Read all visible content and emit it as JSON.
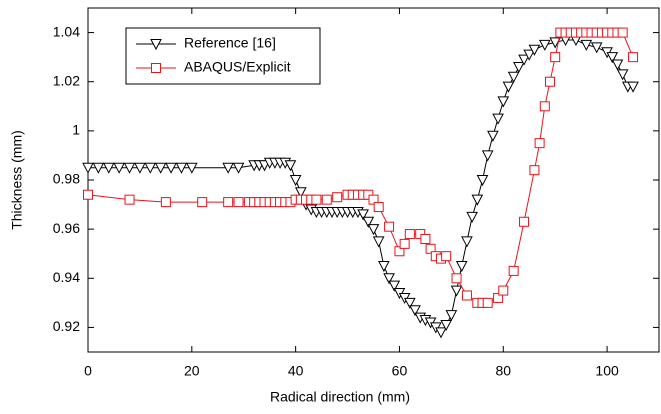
{
  "chart_data": {
    "type": "line",
    "x_label": "Radical direction (mm)",
    "y_label": "Thickness (mm)",
    "xlim": [
      0,
      110
    ],
    "xticks": [
      0,
      20,
      40,
      60,
      80,
      100
    ],
    "ylim": [
      0.91,
      1.05
    ],
    "yticks": [
      0.92,
      0.94,
      0.96,
      0.98,
      1,
      1.02,
      1.04
    ],
    "legend": "upper left",
    "series": [
      {
        "name": "Reference [16]",
        "color": "#000000",
        "marker": "triangle-down",
        "x": [
          0,
          2,
          4,
          6,
          8,
          10,
          12,
          14,
          16,
          18,
          20,
          27,
          29,
          32,
          33,
          34,
          35,
          36,
          37,
          38,
          39,
          40,
          41,
          42,
          43,
          44,
          45,
          46,
          47,
          48,
          49,
          50,
          51,
          52,
          53,
          54,
          55,
          56,
          57,
          58,
          59,
          60,
          61,
          62,
          63,
          64,
          65,
          66,
          67,
          68,
          69,
          70,
          71,
          72,
          73,
          74,
          75,
          76,
          77,
          78,
          79,
          80,
          81,
          82,
          83,
          84,
          85,
          86,
          88,
          90,
          92,
          94,
          96,
          98,
          100,
          101,
          102,
          103,
          104,
          105
        ],
        "values": [
          0.985,
          0.985,
          0.985,
          0.985,
          0.985,
          0.985,
          0.985,
          0.985,
          0.985,
          0.985,
          0.985,
          0.985,
          0.985,
          0.986,
          0.986,
          0.986,
          0.987,
          0.987,
          0.987,
          0.987,
          0.986,
          0.98,
          0.975,
          0.97,
          0.968,
          0.967,
          0.967,
          0.967,
          0.967,
          0.967,
          0.967,
          0.967,
          0.967,
          0.967,
          0.966,
          0.963,
          0.96,
          0.955,
          0.945,
          0.94,
          0.937,
          0.934,
          0.932,
          0.93,
          0.927,
          0.924,
          0.923,
          0.922,
          0.92,
          0.918,
          0.921,
          0.925,
          0.935,
          0.945,
          0.955,
          0.965,
          0.972,
          0.98,
          0.99,
          0.998,
          1.005,
          1.012,
          1.018,
          1.022,
          1.026,
          1.029,
          1.031,
          1.033,
          1.035,
          1.036,
          1.037,
          1.037,
          1.035,
          1.034,
          1.032,
          1.03,
          1.027,
          1.023,
          1.018,
          1.018
        ]
      },
      {
        "name": "ABAQUS/Explicit",
        "color": "#e8141c",
        "marker": "square",
        "x": [
          0,
          8,
          15,
          22,
          27,
          29,
          31,
          32,
          33,
          34,
          35,
          36,
          37,
          38,
          39,
          40,
          41,
          42,
          43,
          44,
          46,
          48,
          50,
          51,
          52,
          53,
          54,
          55,
          56,
          58,
          60,
          61,
          62,
          64,
          65,
          66,
          67,
          68,
          69,
          71,
          73,
          75,
          76,
          77,
          79,
          80,
          82,
          84,
          86,
          87,
          88,
          89,
          90,
          91,
          92,
          93,
          94,
          95,
          96,
          97,
          98,
          99,
          100,
          101,
          102,
          103,
          105
        ],
        "values": [
          0.974,
          0.972,
          0.971,
          0.971,
          0.971,
          0.971,
          0.971,
          0.971,
          0.971,
          0.971,
          0.971,
          0.971,
          0.971,
          0.971,
          0.971,
          0.972,
          0.972,
          0.972,
          0.972,
          0.972,
          0.972,
          0.973,
          0.974,
          0.974,
          0.974,
          0.974,
          0.974,
          0.972,
          0.969,
          0.961,
          0.951,
          0.954,
          0.958,
          0.958,
          0.956,
          0.952,
          0.949,
          0.948,
          0.949,
          0.94,
          0.933,
          0.93,
          0.93,
          0.93,
          0.932,
          0.935,
          0.943,
          0.963,
          0.984,
          0.995,
          1.01,
          1.02,
          1.03,
          1.04,
          1.04,
          1.04,
          1.04,
          1.04,
          1.04,
          1.04,
          1.04,
          1.04,
          1.04,
          1.04,
          1.04,
          1.04,
          1.03
        ]
      }
    ]
  }
}
